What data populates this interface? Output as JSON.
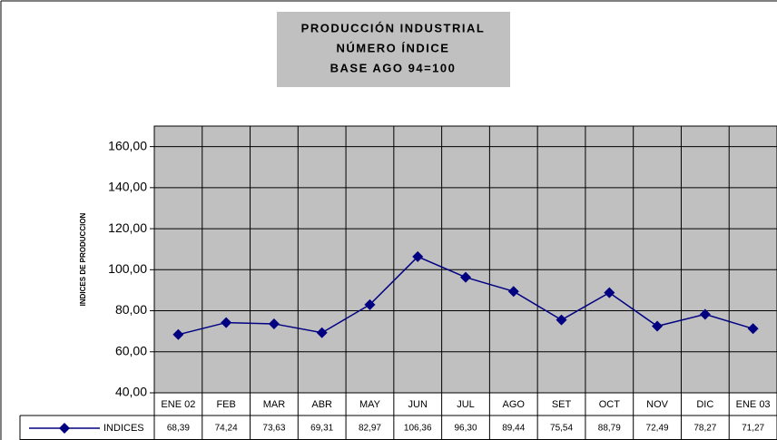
{
  "chart_data": {
    "type": "line",
    "title": [
      "PRODUCCIÓN INDUSTRIAL",
      "NÚMERO ÍNDICE",
      "BASE AGO 94=100"
    ],
    "y_label": "INDICES DE PRODUCCION",
    "categories": [
      "ENE 02",
      "FEB",
      "MAR",
      "ABR",
      "MAY",
      "JUN",
      "JUL",
      "AGO",
      "SET",
      "OCT",
      "NOV",
      "DIC",
      "ENE 03"
    ],
    "series": [
      {
        "name": "INDICES",
        "color": "#000080",
        "values": [
          68.39,
          74.24,
          73.63,
          69.31,
          82.97,
          106.36,
          96.3,
          89.44,
          75.54,
          88.79,
          72.49,
          78.27,
          71.27
        ],
        "value_labels": [
          "68,39",
          "74,24",
          "73,63",
          "69,31",
          "82,97",
          "106,36",
          "96,30",
          "89,44",
          "75,54",
          "88,79",
          "72,49",
          "78,27",
          "71,27"
        ]
      }
    ],
    "ylim": [
      40,
      170
    ],
    "yticks": [
      {
        "value": 40,
        "label": "40,00"
      },
      {
        "value": 60,
        "label": "60,00"
      },
      {
        "value": 80,
        "label": "80,00"
      },
      {
        "value": 100,
        "label": "100,00"
      },
      {
        "value": 120,
        "label": "120,00"
      },
      {
        "value": 140,
        "label": "140,00"
      },
      {
        "value": 160,
        "label": "160,00"
      }
    ],
    "grid": true
  }
}
